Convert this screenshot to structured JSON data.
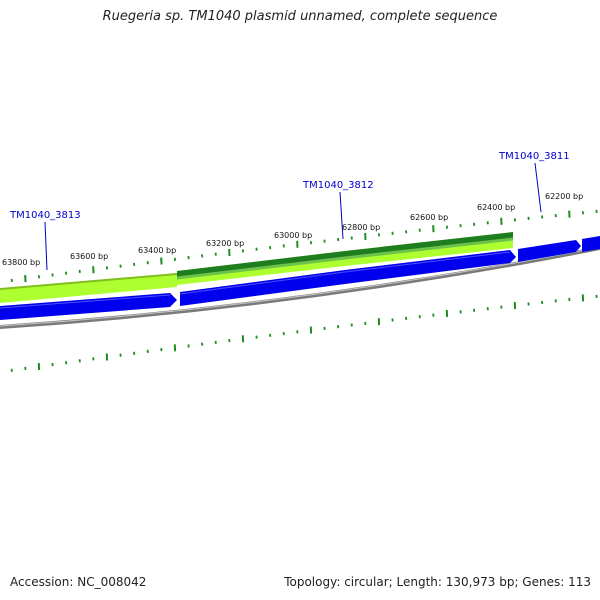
{
  "title": "Ruegeria sp. TM1040 plasmid unnamed, complete sequence",
  "footer": {
    "accession_label": "Accession:",
    "accession": "NC_008042",
    "topology_label": "Topology:",
    "topology": "circular",
    "length_label": "Length:",
    "length": "130,973 bp",
    "genes_label": "Genes:",
    "genes": "113"
  },
  "colors": {
    "forward_gene": "#0000ee",
    "backbone": "#7a7a7a",
    "gc_dark": "#1e7d1e",
    "gc_light": "#adff2f",
    "tick": "#1e8c1e",
    "gene_label": "#0000cc"
  },
  "ticks": {
    "labeled_positions_bp": [
      63800,
      63600,
      63400,
      63200,
      63000,
      62800,
      62600,
      62400,
      62200
    ],
    "unit": "bp"
  },
  "genes": [
    {
      "locus_tag": "TM1040_3813",
      "strand": "forward"
    },
    {
      "locus_tag": "TM1040_3812",
      "strand": "forward"
    },
    {
      "locus_tag": "TM1040_3811",
      "strand": "forward"
    }
  ]
}
